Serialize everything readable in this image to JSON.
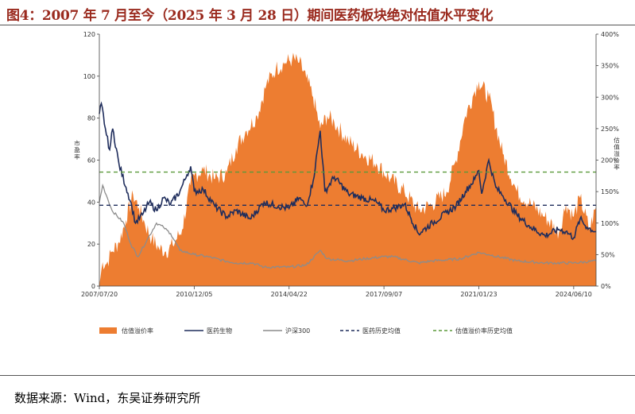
{
  "title": "图4：2007 年 7 月至今（2025 年 3 月 28 日）期间医药板块绝对估值水平变化",
  "source": "数据来源：Wind，东吴证券研究所",
  "colors": {
    "title": "#9a2a1e",
    "premium_area": "#ed7d31",
    "pharma_line": "#1f2d5c",
    "hs300_line": "#8c8c8c",
    "pharma_mean": "#1f2d5c",
    "premium_mean": "#5b9a3a"
  },
  "chart_data": {
    "type": "area",
    "ylabel": "市盈率",
    "y2label": "估值溢价率",
    "ylim": [
      0,
      120
    ],
    "y2lim": [
      0,
      4
    ],
    "yticks": [
      "0",
      "20",
      "40",
      "60",
      "80",
      "100",
      "120"
    ],
    "y2ticks": [
      "0%",
      "50%",
      "100%",
      "150%",
      "200%",
      "250%",
      "300%",
      "350%",
      "400%"
    ],
    "xticks": [
      "2007/07/20",
      "2010/12/05",
      "2014/04/22",
      "2017/09/07",
      "2021/01/23",
      "2024/06/10"
    ],
    "xrange": [
      "2007-07-20",
      "2025-03-28"
    ],
    "series": [
      {
        "name": "估值溢价率",
        "type": "area",
        "axis": "right",
        "points": [
          [
            "2007-07-20",
            0.02
          ],
          [
            "2007-09-01",
            0.38
          ],
          [
            "2007-10-20",
            0.35
          ],
          [
            "2008-01-01",
            0.55
          ],
          [
            "2008-04-01",
            0.7
          ],
          [
            "2008-07-01",
            1.05
          ],
          [
            "2008-10-01",
            1.45
          ],
          [
            "2008-12-15",
            1.25
          ],
          [
            "2009-03-01",
            1.0
          ],
          [
            "2009-06-01",
            0.75
          ],
          [
            "2009-09-01",
            0.6
          ],
          [
            "2009-12-01",
            0.55
          ],
          [
            "2010-03-01",
            0.65
          ],
          [
            "2010-07-01",
            0.9
          ],
          [
            "2010-10-15",
            1.6
          ],
          [
            "2010-12-05",
            1.75
          ],
          [
            "2011-04-01",
            1.85
          ],
          [
            "2011-09-01",
            1.7
          ],
          [
            "2012-02-01",
            1.8
          ],
          [
            "2012-06-01",
            2.2
          ],
          [
            "2012-10-01",
            2.45
          ],
          [
            "2013-03-01",
            2.7
          ],
          [
            "2013-07-01",
            3.2
          ],
          [
            "2013-11-01",
            3.45
          ],
          [
            "2014-03-01",
            3.55
          ],
          [
            "2014-06-01",
            3.6
          ],
          [
            "2014-09-01",
            3.55
          ],
          [
            "2014-12-01",
            3.3
          ],
          [
            "2015-03-01",
            3.0
          ],
          [
            "2015-06-01",
            2.5
          ],
          [
            "2015-09-01",
            2.7
          ],
          [
            "2015-12-01",
            2.6
          ],
          [
            "2016-06-01",
            2.3
          ],
          [
            "2016-12-01",
            2.1
          ],
          [
            "2017-06-01",
            1.95
          ],
          [
            "2017-12-01",
            1.7
          ],
          [
            "2018-06-01",
            1.5
          ],
          [
            "2018-12-01",
            1.2
          ],
          [
            "2019-06-01",
            1.3
          ],
          [
            "2019-12-01",
            1.5
          ],
          [
            "2020-04-01",
            2.0
          ],
          [
            "2020-08-01",
            2.7
          ],
          [
            "2020-12-01",
            3.1
          ],
          [
            "2021-01-23",
            3.25
          ],
          [
            "2021-06-01",
            3.0
          ],
          [
            "2021-12-01",
            2.1
          ],
          [
            "2022-06-01",
            1.5
          ],
          [
            "2022-12-01",
            1.3
          ],
          [
            "2023-06-01",
            1.1
          ],
          [
            "2023-12-01",
            0.85
          ],
          [
            "2024-03-01",
            1.3
          ],
          [
            "2024-06-10",
            1.1
          ],
          [
            "2024-09-01",
            1.4
          ],
          [
            "2025-01-01",
            0.9
          ],
          [
            "2025-03-28",
            1.25
          ]
        ]
      },
      {
        "name": "医药生物",
        "type": "line",
        "axis": "left",
        "points": [
          [
            "2007-07-20",
            82
          ],
          [
            "2007-08-15",
            87
          ],
          [
            "2007-10-20",
            72
          ],
          [
            "2007-12-01",
            65
          ],
          [
            "2008-01-10",
            75
          ],
          [
            "2008-04-01",
            58
          ],
          [
            "2008-07-01",
            47
          ],
          [
            "2008-09-01",
            40
          ],
          [
            "2008-11-01",
            30
          ],
          [
            "2009-02-01",
            34
          ],
          [
            "2009-05-01",
            40
          ],
          [
            "2009-08-01",
            36
          ],
          [
            "2009-11-01",
            42
          ],
          [
            "2010-02-01",
            39
          ],
          [
            "2010-06-01",
            45
          ],
          [
            "2010-09-01",
            53
          ],
          [
            "2010-10-20",
            57
          ],
          [
            "2010-12-05",
            45
          ],
          [
            "2011-04-01",
            46
          ],
          [
            "2011-09-01",
            38
          ],
          [
            "2012-02-01",
            33
          ],
          [
            "2012-06-01",
            36
          ],
          [
            "2012-12-01",
            32
          ],
          [
            "2013-06-01",
            40
          ],
          [
            "2013-12-01",
            38
          ],
          [
            "2014-04-22",
            37
          ],
          [
            "2014-09-01",
            42
          ],
          [
            "2014-12-01",
            38
          ],
          [
            "2015-03-01",
            50
          ],
          [
            "2015-06-01",
            74
          ],
          [
            "2015-08-01",
            45
          ],
          [
            "2015-12-01",
            52
          ],
          [
            "2016-06-01",
            44
          ],
          [
            "2016-12-01",
            42
          ],
          [
            "2017-06-01",
            40
          ],
          [
            "2017-09-07",
            36
          ],
          [
            "2018-01-01",
            37
          ],
          [
            "2018-06-01",
            39
          ],
          [
            "2018-12-01",
            25
          ],
          [
            "2019-06-01",
            30
          ],
          [
            "2019-12-01",
            35
          ],
          [
            "2020-04-01",
            38
          ],
          [
            "2020-08-01",
            45
          ],
          [
            "2020-12-01",
            51
          ],
          [
            "2021-01-23",
            55
          ],
          [
            "2021-03-01",
            44
          ],
          [
            "2021-06-01",
            60
          ],
          [
            "2021-09-01",
            47
          ],
          [
            "2021-12-01",
            43
          ],
          [
            "2022-06-01",
            34
          ],
          [
            "2022-12-01",
            28
          ],
          [
            "2023-06-01",
            24
          ],
          [
            "2023-12-01",
            27
          ],
          [
            "2024-03-01",
            26
          ],
          [
            "2024-06-10",
            23
          ],
          [
            "2024-09-01",
            32
          ],
          [
            "2024-12-01",
            28
          ],
          [
            "2025-03-28",
            26
          ]
        ]
      },
      {
        "name": "沪深300",
        "type": "line",
        "axis": "left",
        "points": [
          [
            "2007-07-20",
            40
          ],
          [
            "2007-09-01",
            48
          ],
          [
            "2007-11-01",
            42
          ],
          [
            "2008-01-01",
            36
          ],
          [
            "2008-06-01",
            30
          ],
          [
            "2008-09-01",
            20
          ],
          [
            "2008-12-01",
            14
          ],
          [
            "2009-04-01",
            22
          ],
          [
            "2009-08-01",
            30
          ],
          [
            "2009-11-01",
            28
          ],
          [
            "2010-02-01",
            25
          ],
          [
            "2010-06-01",
            17
          ],
          [
            "2010-12-05",
            15
          ],
          [
            "2011-06-01",
            14
          ],
          [
            "2012-01-01",
            12
          ],
          [
            "2012-06-01",
            11
          ],
          [
            "2013-01-01",
            11
          ],
          [
            "2013-06-01",
            9
          ],
          [
            "2014-04-22",
            9
          ],
          [
            "2014-12-01",
            10
          ],
          [
            "2015-06-01",
            17
          ],
          [
            "2015-09-01",
            13
          ],
          [
            "2016-06-01",
            12
          ],
          [
            "2017-01-01",
            13
          ],
          [
            "2017-09-07",
            14
          ],
          [
            "2018-01-01",
            14
          ],
          [
            "2018-12-01",
            11
          ],
          [
            "2019-06-01",
            12
          ],
          [
            "2020-06-01",
            13
          ],
          [
            "2021-01-23",
            16
          ],
          [
            "2021-06-01",
            15
          ],
          [
            "2022-06-01",
            12
          ],
          [
            "2023-06-01",
            11
          ],
          [
            "2024-06-10",
            11
          ],
          [
            "2025-03-28",
            12
          ]
        ]
      },
      {
        "name": "医药历史均值",
        "type": "dashed",
        "axis": "left",
        "value": 38.5
      },
      {
        "name": "估值溢价率历史均值",
        "type": "dashed",
        "axis": "right",
        "value": 1.81
      }
    ]
  }
}
